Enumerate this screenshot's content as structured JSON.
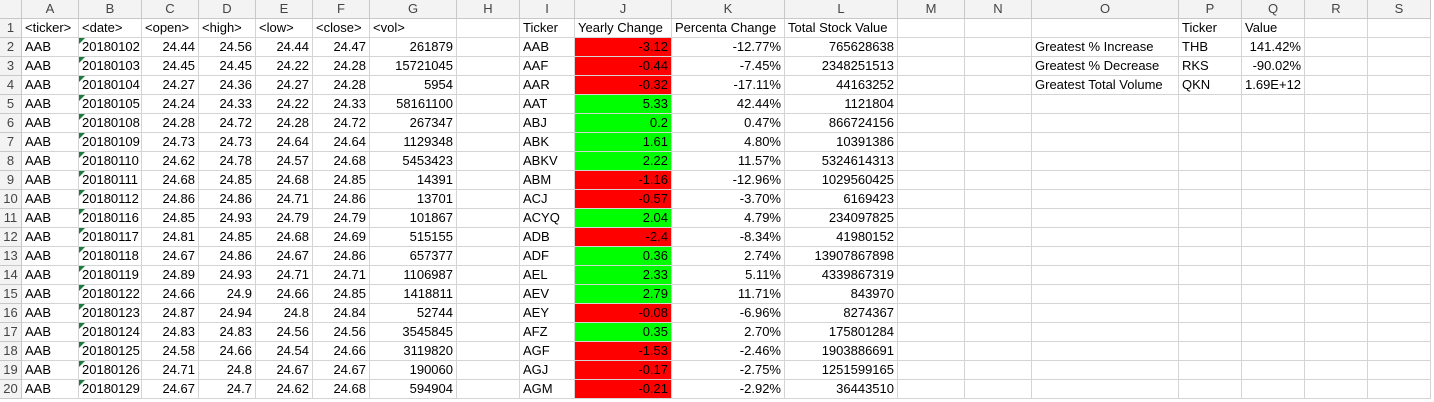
{
  "columns": [
    "A",
    "B",
    "C",
    "D",
    "E",
    "F",
    "G",
    "H",
    "I",
    "J",
    "K",
    "L",
    "M",
    "N",
    "O",
    "P",
    "Q",
    "R",
    "S"
  ],
  "rows": [
    1,
    2,
    3,
    4,
    5,
    6,
    7,
    8,
    9,
    10,
    11,
    12,
    13,
    14,
    15,
    16,
    17,
    18,
    19,
    20
  ],
  "source_headers": [
    "<ticker>",
    "<date>",
    "<open>",
    "<high>",
    "<low>",
    "<close>",
    "<vol>"
  ],
  "source_rows": [
    [
      "AAB",
      "20180102",
      "24.44",
      "24.56",
      "24.44",
      "24.47",
      "261879"
    ],
    [
      "AAB",
      "20180103",
      "24.45",
      "24.45",
      "24.22",
      "24.28",
      "15721045"
    ],
    [
      "AAB",
      "20180104",
      "24.27",
      "24.36",
      "24.27",
      "24.28",
      "5954"
    ],
    [
      "AAB",
      "20180105",
      "24.24",
      "24.33",
      "24.22",
      "24.33",
      "58161100"
    ],
    [
      "AAB",
      "20180108",
      "24.28",
      "24.72",
      "24.28",
      "24.72",
      "267347"
    ],
    [
      "AAB",
      "20180109",
      "24.73",
      "24.73",
      "24.64",
      "24.64",
      "1129348"
    ],
    [
      "AAB",
      "20180110",
      "24.62",
      "24.78",
      "24.57",
      "24.68",
      "5453423"
    ],
    [
      "AAB",
      "20180111",
      "24.68",
      "24.85",
      "24.68",
      "24.85",
      "14391"
    ],
    [
      "AAB",
      "20180112",
      "24.86",
      "24.86",
      "24.71",
      "24.86",
      "13701"
    ],
    [
      "AAB",
      "20180116",
      "24.85",
      "24.93",
      "24.79",
      "24.79",
      "101867"
    ],
    [
      "AAB",
      "20180117",
      "24.81",
      "24.85",
      "24.68",
      "24.69",
      "515155"
    ],
    [
      "AAB",
      "20180118",
      "24.67",
      "24.86",
      "24.67",
      "24.86",
      "657377"
    ],
    [
      "AAB",
      "20180119",
      "24.89",
      "24.93",
      "24.71",
      "24.71",
      "1106987"
    ],
    [
      "AAB",
      "20180122",
      "24.66",
      "24.9",
      "24.66",
      "24.85",
      "1418811"
    ],
    [
      "AAB",
      "20180123",
      "24.87",
      "24.94",
      "24.8",
      "24.84",
      "52744"
    ],
    [
      "AAB",
      "20180124",
      "24.83",
      "24.83",
      "24.56",
      "24.56",
      "3545845"
    ],
    [
      "AAB",
      "20180125",
      "24.58",
      "24.66",
      "24.54",
      "24.66",
      "3119820"
    ],
    [
      "AAB",
      "20180126",
      "24.71",
      "24.8",
      "24.67",
      "24.67",
      "190060"
    ],
    [
      "AAB",
      "20180129",
      "24.67",
      "24.7",
      "24.62",
      "24.68",
      "594904"
    ]
  ],
  "summary_headers": [
    "Ticker",
    "Yearly Change",
    "Percenta Change",
    "Total Stock Value"
  ],
  "summary_rows": [
    [
      "AAB",
      "-3.12",
      "-12.77%",
      "765628638"
    ],
    [
      "AAF",
      "-0.44",
      "-7.45%",
      "2348251513"
    ],
    [
      "AAR",
      "-0.32",
      "-17.11%",
      "44163252"
    ],
    [
      "AAT",
      "5.33",
      "42.44%",
      "1121804"
    ],
    [
      "ABJ",
      "0.2",
      "0.47%",
      "866724156"
    ],
    [
      "ABK",
      "1.61",
      "4.80%",
      "10391386"
    ],
    [
      "ABKV",
      "2.22",
      "11.57%",
      "5324614313"
    ],
    [
      "ABM",
      "-1.16",
      "-12.96%",
      "1029560425"
    ],
    [
      "ACJ",
      "-0.57",
      "-3.70%",
      "6169423"
    ],
    [
      "ACYQ",
      "2.04",
      "4.79%",
      "234097825"
    ],
    [
      "ADB",
      "-2.4",
      "-8.34%",
      "41980152"
    ],
    [
      "ADF",
      "0.36",
      "2.74%",
      "13907867898"
    ],
    [
      "AEL",
      "2.33",
      "5.11%",
      "4339867319"
    ],
    [
      "AEV",
      "2.79",
      "11.71%",
      "843970"
    ],
    [
      "AEY",
      "-0.08",
      "-6.96%",
      "8274367"
    ],
    [
      "AFZ",
      "0.35",
      "2.70%",
      "175801284"
    ],
    [
      "AGF",
      "-1.53",
      "-2.46%",
      "1903886691"
    ],
    [
      "AGJ",
      "-0.17",
      "-2.75%",
      "1251599165"
    ],
    [
      "AGM",
      "-0.21",
      "-2.92%",
      "36443510"
    ]
  ],
  "greatest_headers": [
    "Ticker",
    "Value"
  ],
  "greatest_rows": [
    [
      "Greatest % Increase",
      "THB",
      "141.42%"
    ],
    [
      "Greatest % Decrease",
      "RKS",
      "-90.02%"
    ],
    [
      "Greatest Total Volume",
      "QKN",
      "1.69E+12"
    ]
  ],
  "colors": {
    "positive_fill": "#00ff00",
    "negative_fill": "#ff0000",
    "header_bg": "#f3f3f3",
    "gridline": "#d4d4d4",
    "error_marker": "#1e7b3f"
  }
}
